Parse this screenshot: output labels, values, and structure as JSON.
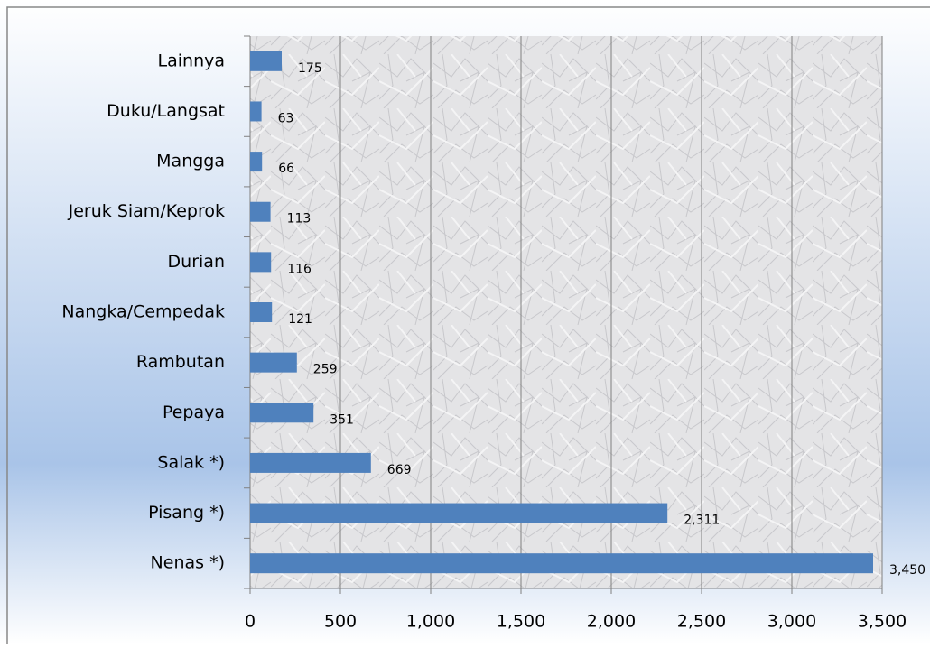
{
  "chart_data": {
    "type": "bar",
    "orientation": "horizontal",
    "categories": [
      "Lainnya",
      "Duku/Langsat",
      "Mangga",
      "Jeruk Siam/Keprok",
      "Durian",
      "Nangka/Cempedak",
      "Rambutan",
      "Pepaya",
      "Salak *)",
      "Pisang *)",
      "Nenas *)"
    ],
    "values": [
      175,
      63,
      66,
      113,
      116,
      121,
      259,
      351,
      669,
      2311,
      3450
    ],
    "value_labels": [
      "175",
      "63",
      "66",
      "113",
      "116",
      "121",
      "259",
      "351",
      "669",
      "2,311",
      "3,450"
    ],
    "color": "#4f81bd",
    "xlim": [
      0,
      3500
    ],
    "xticks": [
      0,
      500,
      {
        "value": 1000,
        "label": "1,000"
      },
      {
        "value": 1500,
        "label": "1,500"
      },
      {
        "value": 2000,
        "label": "2,000"
      },
      {
        "value": 2500,
        "label": "2,500"
      },
      {
        "value": 3000,
        "label": "3,000"
      },
      {
        "value": 3500,
        "label": "3,500"
      }
    ],
    "grid": true
  }
}
